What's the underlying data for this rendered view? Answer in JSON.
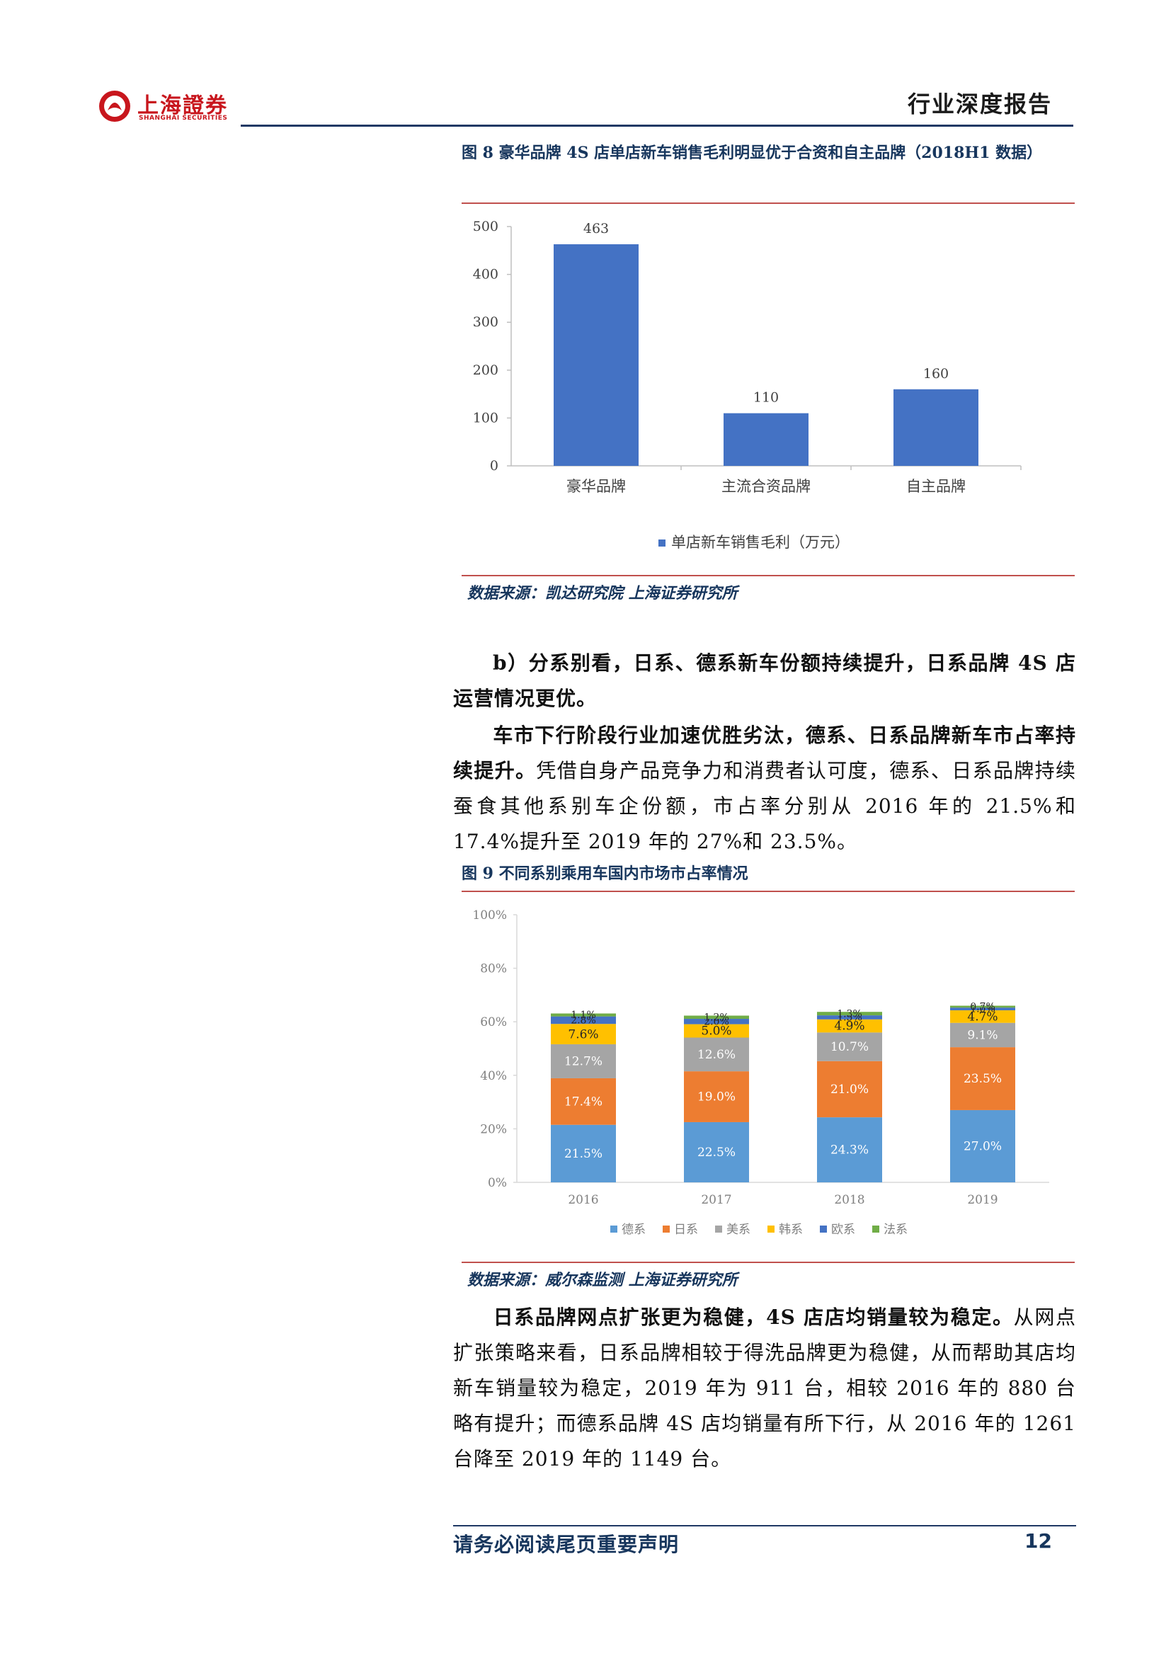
{
  "header": {
    "logo_cn": "上海證券",
    "logo_en": "SHANGHAI SECURITIES",
    "report_type": "行业深度报告"
  },
  "figure8": {
    "caption": "图 8 豪华品牌 4S 店单店新车销售毛利明显优于合资和自主品牌（2018H1 数据）",
    "source": "数据来源：凯达研究院 上海证券研究所",
    "chart_data": {
      "type": "bar",
      "categories": [
        "豪华品牌",
        "主流合资品牌",
        "自主品牌"
      ],
      "series": [
        {
          "name": "单店新车销售毛利（万元）",
          "values": [
            463,
            110,
            160
          ]
        }
      ],
      "y_ticks": [
        "0",
        "100",
        "200",
        "300",
        "400",
        "500"
      ],
      "ylim": [
        0,
        500
      ],
      "legend": "bottom",
      "bar_color": "#4472c4",
      "grid": false
    }
  },
  "section_b": {
    "heading": "b）分系别看，日系、德系新车份额持续提升，日系品牌 4S 店运营情况更优。",
    "p1_bold": "车市下行阶段行业加速优胜劣汰，德系、日系品牌新车市占率持续提升。",
    "p1_rest": "凭借自身产品竞争力和消费者认可度，德系、日系品牌持续蚕食其他系别车企份额，市占率分别从 2016 年的 21.5%和 17.4%提升至 2019 年的 27%和 23.5%。"
  },
  "figure9": {
    "caption": "图 9 不同系别乘用车国内市场市占率情况",
    "source": "数据来源：威尔森监测 上海证券研究所",
    "chart_data": {
      "type": "bar",
      "stacked": true,
      "categories": [
        "2016",
        "2017",
        "2018",
        "2019"
      ],
      "series": [
        {
          "name": "德系",
          "color": "#5b9bd5",
          "values": [
            21.5,
            22.5,
            24.3,
            27.0
          ],
          "labels": [
            "21.5%",
            "22.5%",
            "24.3%",
            "27.0%"
          ]
        },
        {
          "name": "日系",
          "color": "#ed7d31",
          "values": [
            17.4,
            19.0,
            21.0,
            23.5
          ],
          "labels": [
            "17.4%",
            "19.0%",
            "21.0%",
            "23.5%"
          ]
        },
        {
          "name": "美系",
          "color": "#a5a5a5",
          "values": [
            12.7,
            12.6,
            10.7,
            9.1
          ],
          "labels": [
            "12.7%",
            "12.6%",
            "10.7%",
            "9.1%"
          ]
        },
        {
          "name": "韩系",
          "color": "#ffc000",
          "values": [
            7.6,
            5.0,
            4.9,
            4.7
          ],
          "labels": [
            "7.6%",
            "5.0%",
            "4.9%",
            "4.7%"
          ]
        },
        {
          "name": "欧系",
          "color": "#4472c4",
          "values": [
            2.8,
            2.0,
            1.5,
            1.0
          ],
          "labels": [
            "2.8%",
            "2.0%",
            "1.5%",
            "1.0%"
          ]
        },
        {
          "name": "法系",
          "color": "#70ad47",
          "values": [
            1.1,
            1.2,
            1.3,
            0.7
          ],
          "labels": [
            "1.1%",
            "1.2%",
            "1.3%",
            "0.7%"
          ]
        }
      ],
      "y_ticks": [
        "0%",
        "20%",
        "40%",
        "60%",
        "80%",
        "100%"
      ],
      "ylim": [
        0,
        100
      ],
      "legend": "bottom",
      "grid": false
    }
  },
  "section_c": {
    "p_bold": "日系品牌网点扩张更为稳健，4S 店店均销量较为稳定。",
    "p_rest": "从网点扩张策略来看，日系品牌相较于得洗品牌更为稳健，从而帮助其店均新车销量较为稳定，2019 年为 911 台，相较 2016 年的 880 台略有提升；而德系品牌 4S 店均销量有所下行，从 2016 年的 1261 台降至 2019 年的 1149 台。"
  },
  "footer": {
    "notice": "请务必阅读尾页重要声明",
    "page_number": "12"
  }
}
